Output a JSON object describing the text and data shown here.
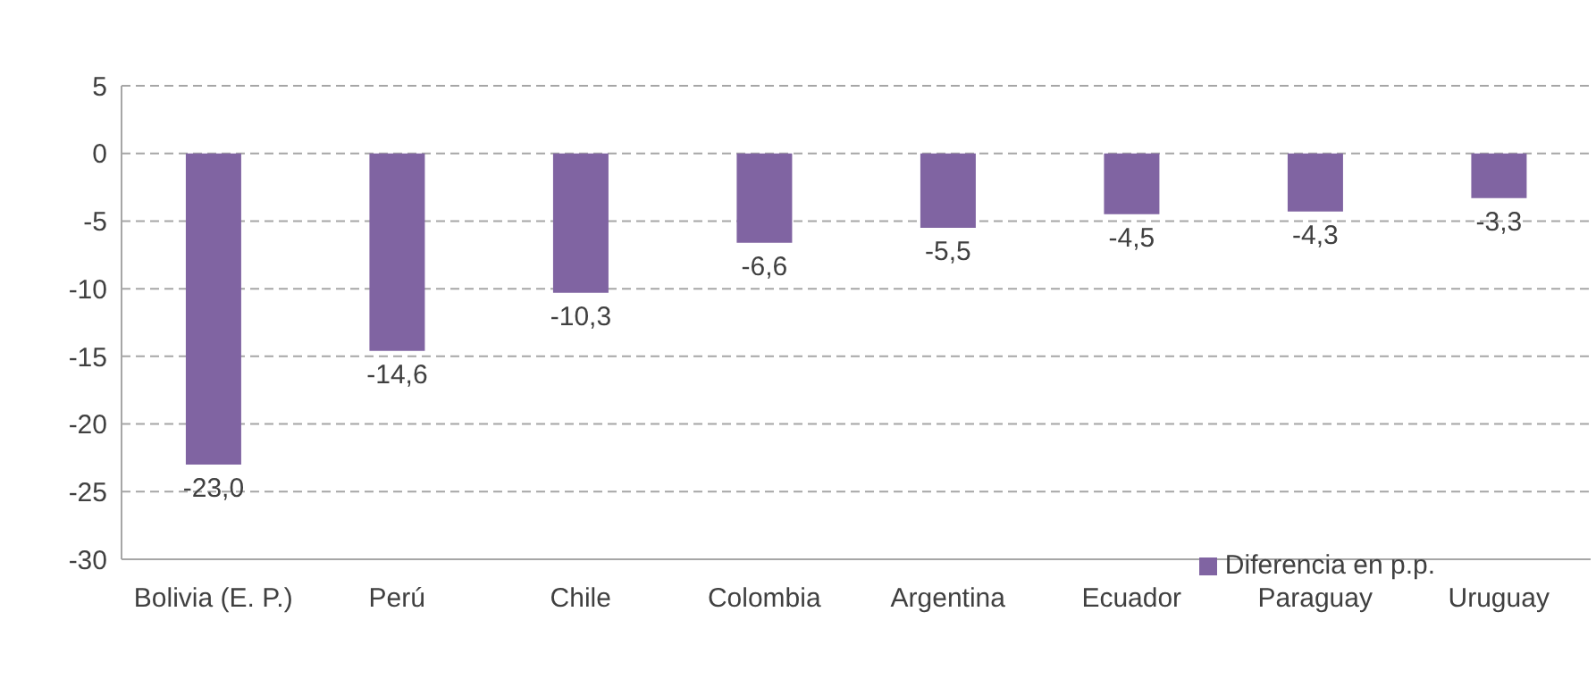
{
  "chart_data": {
    "type": "bar",
    "categories": [
      "Bolivia (E. P.)",
      "Perú",
      "Chile",
      "Colombia",
      "Argentina",
      "Ecuador",
      "Paraguay",
      "Uruguay"
    ],
    "series": [
      {
        "name": "Diferencia en p.p.",
        "color": "#8064a2",
        "values": [
          -23.0,
          -14.6,
          -10.3,
          -6.6,
          -5.5,
          -4.5,
          -4.3,
          -3.3
        ],
        "value_labels": [
          "-23,0",
          "-14,6",
          "-10,3",
          "-6,6",
          "-5,5",
          "-4,5",
          "-4,3",
          "-3,3"
        ]
      }
    ],
    "ylim": [
      -30,
      5
    ],
    "yticks": [
      -30,
      -25,
      -20,
      -15,
      -10,
      -5,
      0,
      5
    ],
    "grid": "y",
    "legend": "bottom right"
  }
}
